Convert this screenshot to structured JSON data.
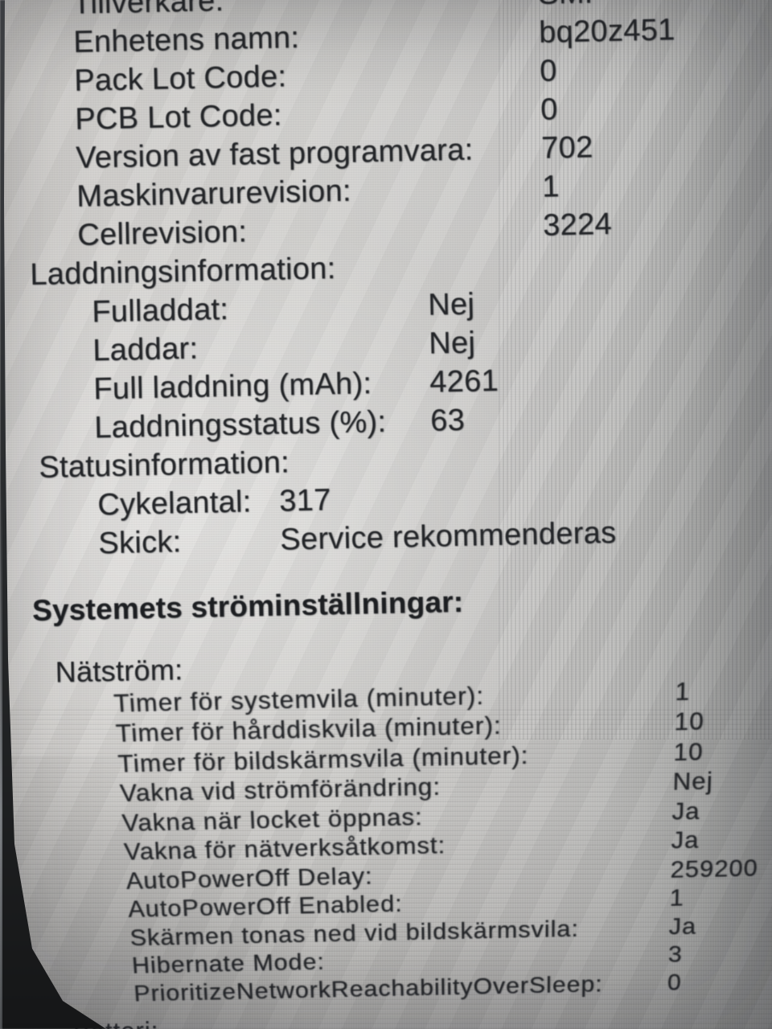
{
  "colors": {
    "screen_bg": "#cbcac7",
    "text": "#232528",
    "bezel": "#1e2022",
    "highlight": "#dedcd8"
  },
  "battery_info": {
    "device_rows": [
      {
        "label": "Tillverkare:",
        "value": "SMP"
      },
      {
        "label": "Enhetens namn:",
        "value": "bq20z451"
      },
      {
        "label": "Pack Lot Code:",
        "value": "0"
      },
      {
        "label": "PCB Lot Code:",
        "value": "0"
      },
      {
        "label": "Version av fast programvara:",
        "value": "702"
      },
      {
        "label": "Maskinvarurevision:",
        "value": "1"
      },
      {
        "label": "Cellrevision:",
        "value": "3224"
      }
    ],
    "charge_header": "Laddningsinformation:",
    "charge_rows": [
      {
        "label": "Fulladdat:",
        "value": "Nej"
      },
      {
        "label": "Laddar:",
        "value": "Nej"
      },
      {
        "label": "Full laddning (mAh):",
        "value": "4261"
      },
      {
        "label": "Laddningsstatus (%):",
        "value": "63"
      }
    ],
    "status_header": "Statusinformation:",
    "status_rows": [
      {
        "label": "Cykelantal:",
        "value": "317"
      },
      {
        "label": "Skick:",
        "value": "Service rekommenderas"
      }
    ]
  },
  "power_settings": {
    "header": "Systemets ströminställningar:",
    "ac_header": "Nätström:",
    "ac_rows": [
      {
        "label": "Timer för systemvila (minuter):",
        "value": "1"
      },
      {
        "label": "Timer för hårddiskvila (minuter):",
        "value": "10"
      },
      {
        "label": "Timer för bildskärmsvila (minuter):",
        "value": "10"
      },
      {
        "label": "Vakna vid strömförändring:",
        "value": "Nej"
      },
      {
        "label": "Vakna när locket öppnas:",
        "value": "Ja"
      },
      {
        "label": "Vakna för nätverksåtkomst:",
        "value": "Ja"
      },
      {
        "label": "AutoPowerOff Delay:",
        "value": "259200"
      },
      {
        "label": "AutoPowerOff Enabled:",
        "value": "1"
      },
      {
        "label": "Skärmen tonas ned vid bildskärmsvila:",
        "value": "Ja"
      },
      {
        "label": "Hibernate Mode:",
        "value": "3"
      },
      {
        "label": "PrioritizeNetworkReachabilityOverSleep:",
        "value": "0"
      }
    ],
    "next_section_partial": "Batteri:"
  }
}
